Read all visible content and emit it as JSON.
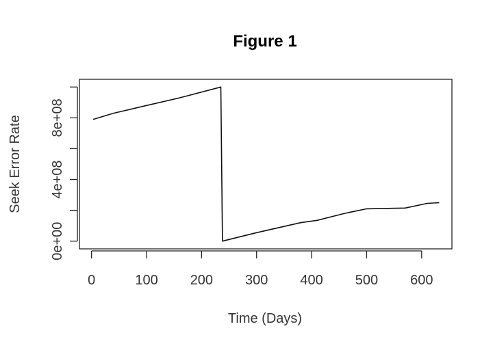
{
  "chart_data": {
    "type": "line",
    "title": "Figure 1",
    "xlabel": "Time (Days)",
    "ylabel": "Seek Error Rate",
    "xlim": [
      -22,
      655
    ],
    "ylim": [
      -50000000,
      1050000000
    ],
    "x_ticks": [
      0,
      100,
      200,
      300,
      400,
      500,
      600
    ],
    "x_tick_labels": [
      "0",
      "100",
      "200",
      "300",
      "400",
      "500",
      "600"
    ],
    "y_ticks": [
      0,
      200000000,
      400000000,
      600000000,
      800000000,
      1000000000
    ],
    "y_tick_labels": [
      "0e+00",
      "",
      "4e+08",
      "",
      "8e+08",
      ""
    ],
    "grid": false,
    "series": [
      {
        "x": [
          3,
          40,
          100,
          160,
          235,
          235,
          238,
          300,
          380,
          410,
          460,
          500,
          570,
          610,
          632
        ],
        "y": [
          790000000,
          830000000,
          880000000,
          930000000,
          1000000000,
          1000000000,
          0,
          55000000,
          120000000,
          135000000,
          180000000,
          210000000,
          215000000,
          245000000,
          250000000
        ]
      }
    ]
  }
}
